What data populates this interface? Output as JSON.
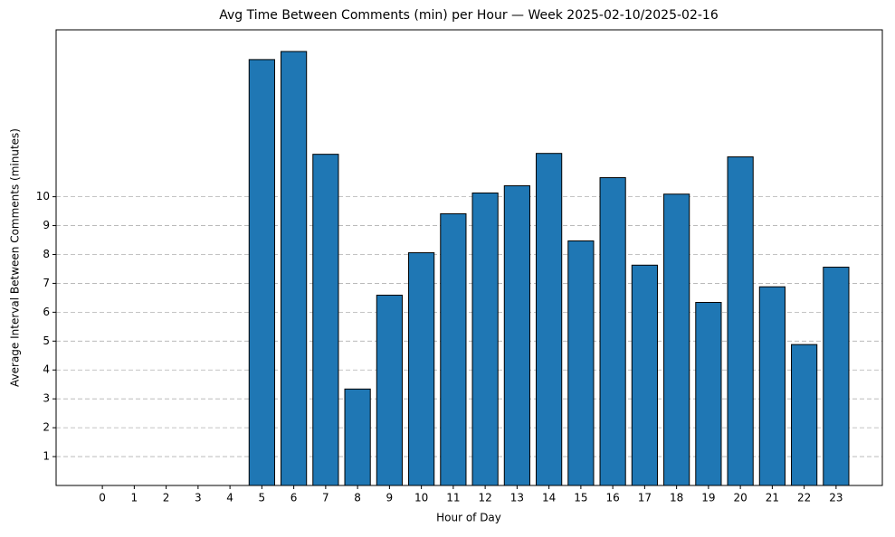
{
  "chart_data": {
    "type": "bar",
    "title": "Avg Time Between Comments (min) per Hour — Week 2025-02-10/2025-02-16",
    "x_label": "Hour of Day",
    "y_label": "Average Interval Between Comments (minutes)",
    "categories": [
      "0",
      "1",
      "2",
      "3",
      "4",
      "5",
      "6",
      "7",
      "8",
      "9",
      "10",
      "11",
      "12",
      "13",
      "14",
      "15",
      "16",
      "17",
      "18",
      "19",
      "20",
      "21",
      "22",
      "23"
    ],
    "values": [
      0,
      0,
      0,
      0,
      0,
      14.75,
      15.03,
      11.47,
      3.34,
      6.59,
      8.06,
      9.41,
      10.13,
      10.38,
      11.5,
      8.47,
      10.66,
      7.63,
      10.09,
      6.34,
      11.38,
      6.88,
      4.88,
      7.56
    ],
    "color": "#1f77b4",
    "edge_color": "#000000",
    "ylim": [
      0,
      15.78
    ],
    "yticks": [
      1,
      2,
      3,
      4,
      5,
      6,
      7,
      8,
      9,
      10
    ],
    "grid": true
  }
}
